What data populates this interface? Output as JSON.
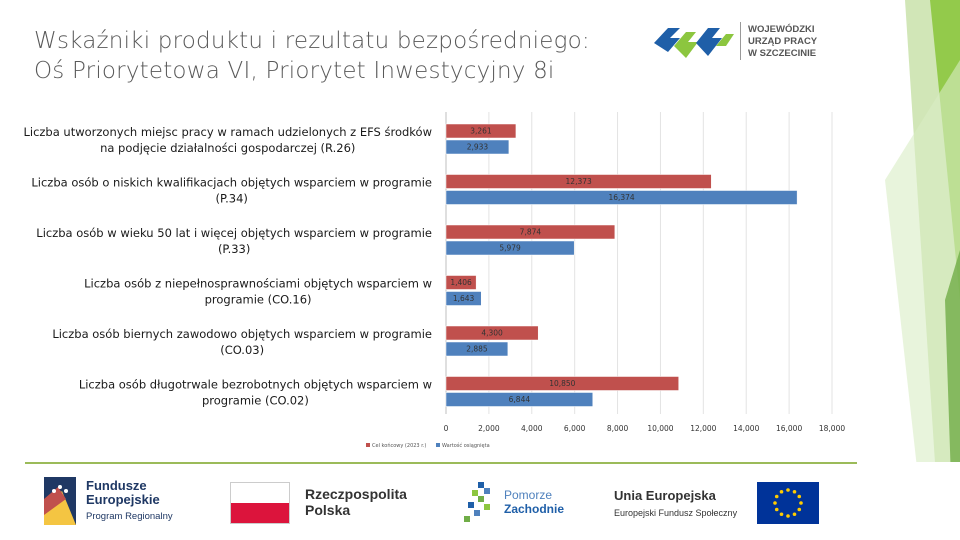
{
  "title": {
    "line1": "Wskaźniki produktu i rezultatu bezpośredniego:",
    "line2": "Oś Priorytetowa VI, Priorytet Inwestycyjny 8i"
  },
  "header_logo": {
    "line1": "WOJEWÓDZKI",
    "line2": "URZĄD PRACY",
    "line3": "W SZCZECINIE"
  },
  "chart_data": {
    "type": "bar",
    "orientation": "horizontal",
    "categories": [
      [
        "Liczba utworzonych miejsc pracy w ramach udzielonych z EFS środków",
        "na podjęcie działalności gospodarczej (R.26)"
      ],
      [
        "Liczba osób o niskich kwalifikacjach objętych wsparciem w programie",
        "(P.34)"
      ],
      [
        "Liczba osób w wieku 50 lat i więcej objętych wsparciem w programie",
        "(P.33)"
      ],
      [
        "Liczba osób z niepełnosprawnościami objętych wsparciem w",
        "programie (CO.16)"
      ],
      [
        "Liczba osób biernych zawodowo objętych wsparciem w programie",
        "(CO.03)"
      ],
      [
        "Liczba osób długotrwale bezrobotnych objętych wsparciem w",
        "programie (CO.02)"
      ]
    ],
    "series": [
      {
        "name": "Cel końcowy (2023 r.)",
        "color": "#c0504d",
        "values": [
          3261,
          12373,
          7874,
          1406,
          4300,
          10850
        ],
        "labels": [
          "3,261",
          "12,373",
          "7,874",
          "1,406",
          "4,300",
          "10,850"
        ]
      },
      {
        "name": "Wartość osiągnięta",
        "color": "#4f81bd",
        "values": [
          2933,
          16374,
          5979,
          1643,
          2885,
          6844
        ],
        "labels": [
          "2,933",
          "16,374",
          "5,979",
          "1,643",
          "2,885",
          "6,844"
        ]
      }
    ],
    "xlim": [
      0,
      18000
    ],
    "xticks": [
      "0",
      "2,000",
      "4,000",
      "6,000",
      "8,000",
      "10,000",
      "12,000",
      "14,000",
      "16,000",
      "18,000"
    ],
    "grid": true,
    "legend_position": "bottom-left"
  },
  "footer": {
    "fe_line1": "Fundusze",
    "fe_line2": "Europejskie",
    "fe_line3": "Program Regionalny",
    "rp_line1": "Rzeczpospolita",
    "rp_line2": "Polska",
    "pz_line1": "Pomorze",
    "pz_line2": "Zachodnie",
    "ue_line1": "Unia Europejska",
    "ue_line2": "Europejski Fundusz Społeczny"
  },
  "colors": {
    "accent_green": "#8cc63f",
    "accent_blue": "#1f5fa8",
    "footer_line": "#9bbb59"
  }
}
